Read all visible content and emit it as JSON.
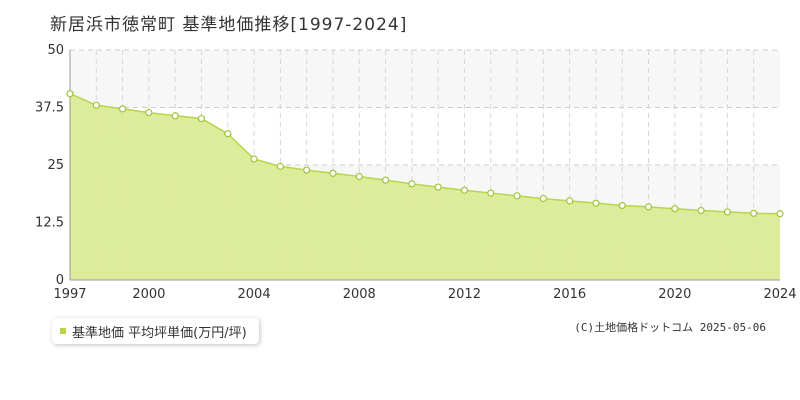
{
  "title": "新居浜市徳常町 基準地価推移[1997-2024]",
  "copyright": "(C)土地価格ドットコム 2025-05-06",
  "colors": {
    "fill": "#dbeb95",
    "line": "#b7d54a",
    "marker": "#9cc43a",
    "band": "#f7f7f7"
  },
  "chart_data": {
    "type": "area",
    "title": "新居浜市徳常町 基準地価推移[1997-2024]",
    "xlabel": "",
    "ylabel": "",
    "xlim": [
      1997,
      2024
    ],
    "ylim": [
      0,
      50
    ],
    "y_ticks": [
      0,
      12.5,
      25,
      37.5,
      50
    ],
    "y_tick_labels": [
      "0",
      "12.5",
      "25",
      "37.5",
      "50"
    ],
    "x_ticks": [
      1997,
      2000,
      2004,
      2008,
      2012,
      2016,
      2020,
      2024
    ],
    "x_tick_labels": [
      "1997",
      "2000",
      "2004",
      "2008",
      "2012",
      "2016",
      "2020",
      "2024"
    ],
    "grid": true,
    "legend_position": "bottom-left",
    "series": [
      {
        "name": "基準地価 平均坪単価(万円/坪)",
        "x": [
          1997,
          1998,
          1999,
          2000,
          2001,
          2002,
          2003,
          2004,
          2005,
          2006,
          2007,
          2008,
          2009,
          2010,
          2011,
          2012,
          2013,
          2014,
          2015,
          2016,
          2017,
          2018,
          2019,
          2020,
          2021,
          2022,
          2023,
          2024
        ],
        "values": [
          40.5,
          38.0,
          37.2,
          36.4,
          35.7,
          35.1,
          31.8,
          26.3,
          24.7,
          23.9,
          23.2,
          22.5,
          21.7,
          20.9,
          20.2,
          19.5,
          18.9,
          18.3,
          17.7,
          17.2,
          16.7,
          16.2,
          15.9,
          15.5,
          15.1,
          14.8,
          14.5,
          14.4
        ]
      }
    ]
  }
}
